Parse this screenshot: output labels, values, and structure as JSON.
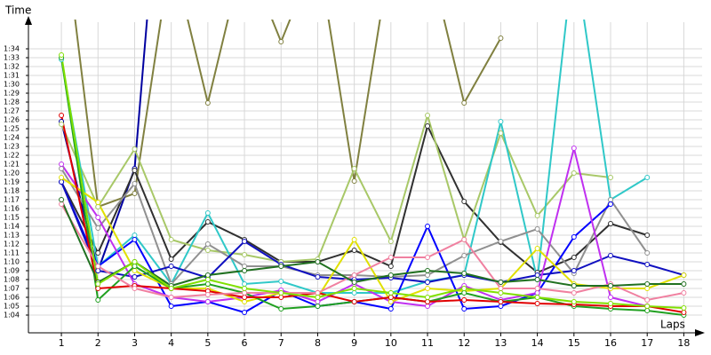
{
  "chart_data": {
    "type": "line",
    "y_label": "Time",
    "x_label": "Laps",
    "x": [
      1,
      2,
      3,
      4,
      5,
      6,
      7,
      8,
      9,
      10,
      11,
      12,
      13,
      14,
      15,
      16,
      17,
      18
    ],
    "xlim": [
      0.1,
      18.5
    ],
    "xticks": [
      1,
      2,
      3,
      4,
      5,
      6,
      7,
      8,
      9,
      10,
      11,
      12,
      13,
      14,
      15,
      16,
      17,
      18
    ],
    "ylim": [
      62,
      97
    ],
    "yticks": [
      {
        "value": 64,
        "label": "1:04"
      },
      {
        "value": 65,
        "label": "1:05"
      },
      {
        "value": 66,
        "label": "1:06"
      },
      {
        "value": 67,
        "label": "1:07"
      },
      {
        "value": 68,
        "label": "1:08"
      },
      {
        "value": 69,
        "label": "1:09"
      },
      {
        "value": 70,
        "label": "1:10"
      },
      {
        "value": 71,
        "label": "1:11"
      },
      {
        "value": 72,
        "label": "1:12"
      },
      {
        "value": 73,
        "label": "1:13"
      },
      {
        "value": 74,
        "label": "1:14"
      },
      {
        "value": 75,
        "label": "1:15"
      },
      {
        "value": 76,
        "label": "1:16"
      },
      {
        "value": 77,
        "label": "1:17"
      },
      {
        "value": 78,
        "label": "1:18"
      },
      {
        "value": 79,
        "label": "1:19"
      },
      {
        "value": 80,
        "label": "1:20"
      },
      {
        "value": 81,
        "label": "1:21"
      },
      {
        "value": 82,
        "label": "1:22"
      },
      {
        "value": 83,
        "label": "1:23"
      },
      {
        "value": 84,
        "label": "1:24"
      },
      {
        "value": 85,
        "label": "1:25"
      },
      {
        "value": 86,
        "label": "1:26"
      },
      {
        "value": 87,
        "label": "1:27"
      },
      {
        "value": 88,
        "label": "1:28"
      },
      {
        "value": 89,
        "label": "1:29"
      },
      {
        "value": 90,
        "label": "1:30"
      },
      {
        "value": 91,
        "label": "1:31"
      },
      {
        "value": 92,
        "label": "1:32"
      },
      {
        "value": 93,
        "label": "1:33"
      },
      {
        "value": 94,
        "label": "1:34"
      }
    ],
    "grid": true,
    "series": [
      {
        "color": "#808040",
        "values": [
          110,
          76.2,
          77.7,
          105,
          87.9,
          105,
          94.8,
          105,
          79.1,
          105,
          105,
          87.9,
          95.2,
          null,
          null,
          null,
          null,
          null
        ]
      },
      {
        "color": "#0000a0",
        "values": [
          85.8,
          69,
          80.5,
          130,
          null,
          null,
          null,
          null,
          null,
          null,
          null,
          null,
          null,
          null,
          null,
          null,
          null,
          null
        ]
      },
      {
        "color": "#303030",
        "values": [
          79,
          71,
          80.3,
          70.3,
          74.5,
          72.5,
          70,
          70,
          71.3,
          69.5,
          85.3,
          76.8,
          72.2,
          68.8,
          70.5,
          74.3,
          73,
          null
        ]
      },
      {
        "color": "#a8c868",
        "values": [
          85.5,
          76.2,
          82.7,
          72.5,
          71.3,
          70.8,
          70,
          70.3,
          80.5,
          72.3,
          86.5,
          72.5,
          84.5,
          75.2,
          80,
          79.5,
          null,
          null
        ]
      },
      {
        "color": "#30c8c8",
        "values": [
          92.8,
          69.5,
          73,
          67.5,
          75.5,
          67.5,
          67.8,
          66.5,
          66.5,
          66.5,
          67.8,
          68.5,
          85.8,
          68,
          105,
          77,
          79.5,
          null
        ]
      },
      {
        "color": "#909090",
        "values": [
          80.5,
          73.8,
          78.8,
          67.5,
          72,
          69.5,
          69.5,
          68.5,
          68.5,
          68.3,
          68.5,
          70.7,
          72.3,
          73.7,
          68.7,
          77,
          71,
          null
        ]
      },
      {
        "color": "#0000ff",
        "values": [
          79,
          69.5,
          72.5,
          65,
          65.5,
          64.3,
          66.7,
          65,
          65.5,
          64.7,
          74,
          64.7,
          65,
          66.5,
          72.8,
          76.5,
          null,
          null
        ]
      },
      {
        "color": "#1010c0",
        "values": [
          79,
          69,
          68.3,
          69.5,
          68.2,
          72.3,
          69.7,
          68.3,
          68,
          68.2,
          67.7,
          68.5,
          67.7,
          68.5,
          69,
          70.7,
          69.7,
          68.5
        ]
      },
      {
        "color": "#c030f0",
        "values": [
          81,
          75,
          67.5,
          66,
          65.5,
          66,
          66.8,
          65.5,
          67.5,
          65.5,
          65,
          67.3,
          65.7,
          66.5,
          82.8,
          66,
          65,
          null
        ]
      },
      {
        "color": "#e0e000",
        "values": [
          79.5,
          76.7,
          69,
          67,
          67,
          65.5,
          66.5,
          66,
          72.5,
          65.5,
          67,
          66.7,
          67,
          71.5,
          67.5,
          67,
          67,
          68.5
        ]
      },
      {
        "color": "#20a020",
        "values": [
          93,
          65.7,
          69.5,
          67,
          67.5,
          66.5,
          64.7,
          65,
          65.5,
          66,
          65.5,
          66.5,
          65.5,
          66,
          65,
          64.7,
          64.5,
          64
        ]
      },
      {
        "color": "#e00000",
        "values": [
          86.5,
          67,
          67.3,
          67,
          66.7,
          66,
          66,
          66.5,
          65.5,
          66,
          65.5,
          65.7,
          65.5,
          65.3,
          65.2,
          65,
          65,
          64.3
        ]
      },
      {
        "color": "#f080a0",
        "values": [
          76.5,
          69.5,
          67,
          66,
          66.3,
          66.5,
          66.5,
          66.5,
          68.5,
          70.5,
          70.5,
          72.5,
          67,
          67,
          66.5,
          67.5,
          65.7,
          66.5
        ]
      },
      {
        "color": "#207020",
        "values": [
          77,
          67.7,
          70,
          67.3,
          68.5,
          69,
          69.5,
          70,
          67.7,
          68.5,
          69,
          68.7,
          67.7,
          68,
          67.3,
          67.3,
          67.5,
          67.5
        ]
      },
      {
        "color": "#80e000",
        "values": [
          93.3,
          67.5,
          70,
          67,
          68,
          67,
          66.5,
          66,
          67,
          66.5,
          66,
          67,
          66.5,
          66,
          65.5,
          65.3,
          65,
          64.8
        ]
      }
    ]
  }
}
